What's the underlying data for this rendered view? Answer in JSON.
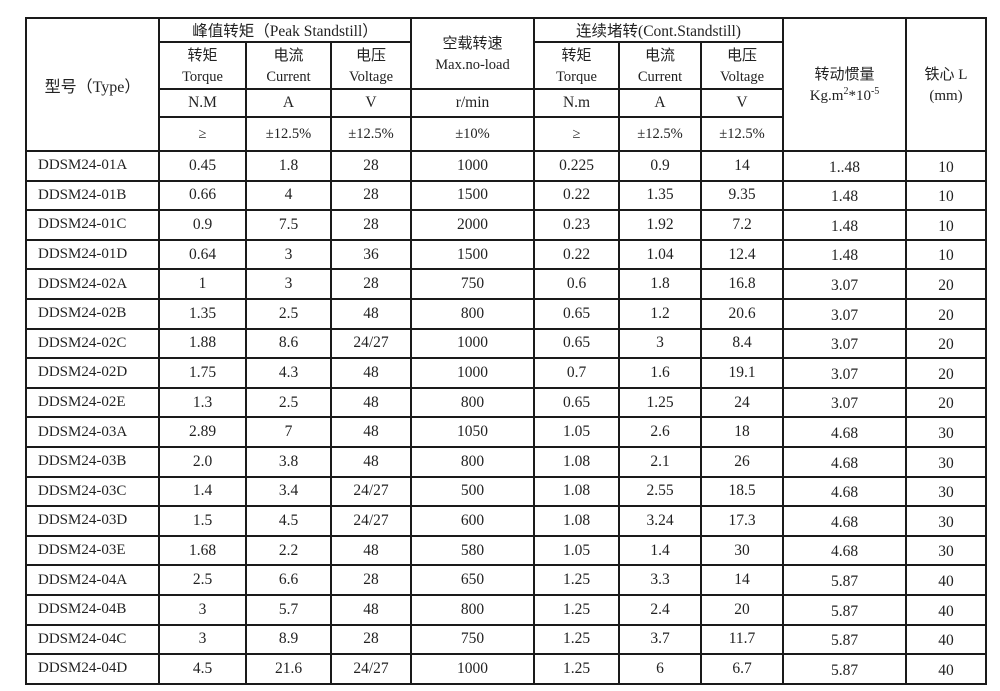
{
  "table": {
    "type_header": "型号（Type）",
    "peak_group": "峰值转矩（Peak Standstill）",
    "cont_group": "连续堵转(Cont.Standstill)",
    "noload": {
      "zh": "空载转速",
      "en": "Max.no-load",
      "unit": "r/min",
      "tol": "±10%"
    },
    "peak_cols": [
      {
        "zh": "转矩",
        "en": "Torque",
        "unit": "N.M",
        "tol": "≥"
      },
      {
        "zh": "电流",
        "en": "Current",
        "unit": "A",
        "tol": "±12.5%"
      },
      {
        "zh": "电压",
        "en": "Voltage",
        "unit": "V",
        "tol": "±12.5%"
      }
    ],
    "cont_cols": [
      {
        "zh": "转矩",
        "en": "Torque",
        "unit": "N.m",
        "tol": "≥"
      },
      {
        "zh": "电流",
        "en": "Current",
        "unit": "A",
        "tol": "±12.5%"
      },
      {
        "zh": "电压",
        "en": "Voltage",
        "unit": "V",
        "tol": "±12.5%"
      }
    ],
    "inertia": {
      "zh": "转动惯量",
      "base1": "Kg.m",
      "sup1": "2",
      "base2": "*10",
      "sup2": "-5"
    },
    "core": {
      "zh": "铁心 L",
      "unit": "(mm)"
    },
    "rows": [
      [
        "DDSM24-01A",
        "0.45",
        "1.8",
        "28",
        "1000",
        "0.225",
        "0.9",
        "14",
        "1..48",
        "10"
      ],
      [
        "DDSM24-01B",
        "0.66",
        "4",
        "28",
        "1500",
        "0.22",
        "1.35",
        "9.35",
        "1.48",
        "10"
      ],
      [
        "DDSM24-01C",
        "0.9",
        "7.5",
        "28",
        "2000",
        "0.23",
        "1.92",
        "7.2",
        "1.48",
        "10"
      ],
      [
        "DDSM24-01D",
        "0.64",
        "3",
        "36",
        "1500",
        "0.22",
        "1.04",
        "12.4",
        "1.48",
        "10"
      ],
      [
        "DDSM24-02A",
        "1",
        "3",
        "28",
        "750",
        "0.6",
        "1.8",
        "16.8",
        "3.07",
        "20"
      ],
      [
        "DDSM24-02B",
        "1.35",
        "2.5",
        "48",
        "800",
        "0.65",
        "1.2",
        "20.6",
        "3.07",
        "20"
      ],
      [
        "DDSM24-02C",
        "1.88",
        "8.6",
        "24/27",
        "1000",
        "0.65",
        "3",
        "8.4",
        "3.07",
        "20"
      ],
      [
        "DDSM24-02D",
        "1.75",
        "4.3",
        "48",
        "1000",
        "0.7",
        "1.6",
        "19.1",
        "3.07",
        "20"
      ],
      [
        "DDSM24-02E",
        "1.3",
        "2.5",
        "48",
        "800",
        "0.65",
        "1.25",
        "24",
        "3.07",
        "20"
      ],
      [
        "DDSM24-03A",
        "2.89",
        "7",
        "48",
        "1050",
        "1.05",
        "2.6",
        "18",
        "4.68",
        "30"
      ],
      [
        "DDSM24-03B",
        "2.0",
        "3.8",
        "48",
        "800",
        "1.08",
        "2.1",
        "26",
        "4.68",
        "30"
      ],
      [
        "DDSM24-03C",
        "1.4",
        "3.4",
        "24/27",
        "500",
        "1.08",
        "2.55",
        "18.5",
        "4.68",
        "30"
      ],
      [
        "DDSM24-03D",
        "1.5",
        "4.5",
        "24/27",
        "600",
        "1.08",
        "3.24",
        "17.3",
        "4.68",
        "30"
      ],
      [
        "DDSM24-03E",
        "1.68",
        "2.2",
        "48",
        "580",
        "1.05",
        "1.4",
        "30",
        "4.68",
        "30"
      ],
      [
        "DDSM24-04A",
        "2.5",
        "6.6",
        "28",
        "650",
        "1.25",
        "3.3",
        "14",
        "5.87",
        "40"
      ],
      [
        "DDSM24-04B",
        "3",
        "5.7",
        "48",
        "800",
        "1.25",
        "2.4",
        "20",
        "5.87",
        "40"
      ],
      [
        "DDSM24-04C",
        "3",
        "8.9",
        "28",
        "750",
        "1.25",
        "3.7",
        "11.7",
        "5.87",
        "40"
      ],
      [
        "DDSM24-04D",
        "4.5",
        "21.6",
        "24/27",
        "1000",
        "1.25",
        "6",
        "6.7",
        "5.87",
        "40"
      ]
    ]
  }
}
